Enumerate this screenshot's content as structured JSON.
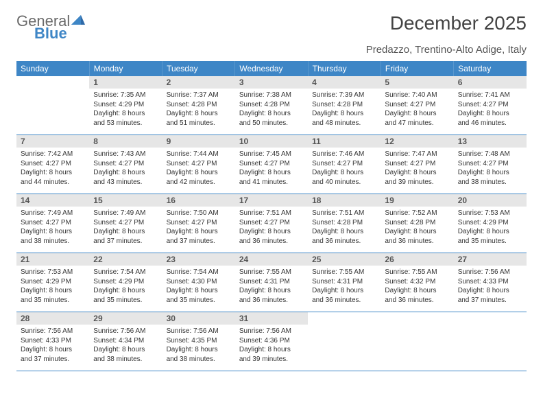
{
  "logo": {
    "text1": "General",
    "text2": "Blue"
  },
  "title": "December 2025",
  "subtitle": "Predazzo, Trentino-Alto Adige, Italy",
  "weekday_headers": [
    "Sunday",
    "Monday",
    "Tuesday",
    "Wednesday",
    "Thursday",
    "Friday",
    "Saturday"
  ],
  "colors": {
    "header_bg": "#3e86c6",
    "header_text": "#ffffff",
    "daynum_bg": "#e6e6e6",
    "daynum_text": "#555555",
    "body_text": "#333333",
    "rule": "#3e86c6",
    "logo_gray": "#6a6a6a",
    "logo_blue": "#3e86c6"
  },
  "typography": {
    "title_size_pt": 21,
    "subtitle_size_pt": 11,
    "header_size_pt": 9,
    "daynum_size_pt": 9,
    "body_size_pt": 7.5
  },
  "weeks": [
    [
      null,
      {
        "n": "1",
        "sunrise": "Sunrise: 7:35 AM",
        "sunset": "Sunset: 4:29 PM",
        "day1": "Daylight: 8 hours",
        "day2": "and 53 minutes."
      },
      {
        "n": "2",
        "sunrise": "Sunrise: 7:37 AM",
        "sunset": "Sunset: 4:28 PM",
        "day1": "Daylight: 8 hours",
        "day2": "and 51 minutes."
      },
      {
        "n": "3",
        "sunrise": "Sunrise: 7:38 AM",
        "sunset": "Sunset: 4:28 PM",
        "day1": "Daylight: 8 hours",
        "day2": "and 50 minutes."
      },
      {
        "n": "4",
        "sunrise": "Sunrise: 7:39 AM",
        "sunset": "Sunset: 4:28 PM",
        "day1": "Daylight: 8 hours",
        "day2": "and 48 minutes."
      },
      {
        "n": "5",
        "sunrise": "Sunrise: 7:40 AM",
        "sunset": "Sunset: 4:27 PM",
        "day1": "Daylight: 8 hours",
        "day2": "and 47 minutes."
      },
      {
        "n": "6",
        "sunrise": "Sunrise: 7:41 AM",
        "sunset": "Sunset: 4:27 PM",
        "day1": "Daylight: 8 hours",
        "day2": "and 46 minutes."
      }
    ],
    [
      {
        "n": "7",
        "sunrise": "Sunrise: 7:42 AM",
        "sunset": "Sunset: 4:27 PM",
        "day1": "Daylight: 8 hours",
        "day2": "and 44 minutes."
      },
      {
        "n": "8",
        "sunrise": "Sunrise: 7:43 AM",
        "sunset": "Sunset: 4:27 PM",
        "day1": "Daylight: 8 hours",
        "day2": "and 43 minutes."
      },
      {
        "n": "9",
        "sunrise": "Sunrise: 7:44 AM",
        "sunset": "Sunset: 4:27 PM",
        "day1": "Daylight: 8 hours",
        "day2": "and 42 minutes."
      },
      {
        "n": "10",
        "sunrise": "Sunrise: 7:45 AM",
        "sunset": "Sunset: 4:27 PM",
        "day1": "Daylight: 8 hours",
        "day2": "and 41 minutes."
      },
      {
        "n": "11",
        "sunrise": "Sunrise: 7:46 AM",
        "sunset": "Sunset: 4:27 PM",
        "day1": "Daylight: 8 hours",
        "day2": "and 40 minutes."
      },
      {
        "n": "12",
        "sunrise": "Sunrise: 7:47 AM",
        "sunset": "Sunset: 4:27 PM",
        "day1": "Daylight: 8 hours",
        "day2": "and 39 minutes."
      },
      {
        "n": "13",
        "sunrise": "Sunrise: 7:48 AM",
        "sunset": "Sunset: 4:27 PM",
        "day1": "Daylight: 8 hours",
        "day2": "and 38 minutes."
      }
    ],
    [
      {
        "n": "14",
        "sunrise": "Sunrise: 7:49 AM",
        "sunset": "Sunset: 4:27 PM",
        "day1": "Daylight: 8 hours",
        "day2": "and 38 minutes."
      },
      {
        "n": "15",
        "sunrise": "Sunrise: 7:49 AM",
        "sunset": "Sunset: 4:27 PM",
        "day1": "Daylight: 8 hours",
        "day2": "and 37 minutes."
      },
      {
        "n": "16",
        "sunrise": "Sunrise: 7:50 AM",
        "sunset": "Sunset: 4:27 PM",
        "day1": "Daylight: 8 hours",
        "day2": "and 37 minutes."
      },
      {
        "n": "17",
        "sunrise": "Sunrise: 7:51 AM",
        "sunset": "Sunset: 4:27 PM",
        "day1": "Daylight: 8 hours",
        "day2": "and 36 minutes."
      },
      {
        "n": "18",
        "sunrise": "Sunrise: 7:51 AM",
        "sunset": "Sunset: 4:28 PM",
        "day1": "Daylight: 8 hours",
        "day2": "and 36 minutes."
      },
      {
        "n": "19",
        "sunrise": "Sunrise: 7:52 AM",
        "sunset": "Sunset: 4:28 PM",
        "day1": "Daylight: 8 hours",
        "day2": "and 36 minutes."
      },
      {
        "n": "20",
        "sunrise": "Sunrise: 7:53 AM",
        "sunset": "Sunset: 4:29 PM",
        "day1": "Daylight: 8 hours",
        "day2": "and 35 minutes."
      }
    ],
    [
      {
        "n": "21",
        "sunrise": "Sunrise: 7:53 AM",
        "sunset": "Sunset: 4:29 PM",
        "day1": "Daylight: 8 hours",
        "day2": "and 35 minutes."
      },
      {
        "n": "22",
        "sunrise": "Sunrise: 7:54 AM",
        "sunset": "Sunset: 4:29 PM",
        "day1": "Daylight: 8 hours",
        "day2": "and 35 minutes."
      },
      {
        "n": "23",
        "sunrise": "Sunrise: 7:54 AM",
        "sunset": "Sunset: 4:30 PM",
        "day1": "Daylight: 8 hours",
        "day2": "and 35 minutes."
      },
      {
        "n": "24",
        "sunrise": "Sunrise: 7:55 AM",
        "sunset": "Sunset: 4:31 PM",
        "day1": "Daylight: 8 hours",
        "day2": "and 36 minutes."
      },
      {
        "n": "25",
        "sunrise": "Sunrise: 7:55 AM",
        "sunset": "Sunset: 4:31 PM",
        "day1": "Daylight: 8 hours",
        "day2": "and 36 minutes."
      },
      {
        "n": "26",
        "sunrise": "Sunrise: 7:55 AM",
        "sunset": "Sunset: 4:32 PM",
        "day1": "Daylight: 8 hours",
        "day2": "and 36 minutes."
      },
      {
        "n": "27",
        "sunrise": "Sunrise: 7:56 AM",
        "sunset": "Sunset: 4:33 PM",
        "day1": "Daylight: 8 hours",
        "day2": "and 37 minutes."
      }
    ],
    [
      {
        "n": "28",
        "sunrise": "Sunrise: 7:56 AM",
        "sunset": "Sunset: 4:33 PM",
        "day1": "Daylight: 8 hours",
        "day2": "and 37 minutes."
      },
      {
        "n": "29",
        "sunrise": "Sunrise: 7:56 AM",
        "sunset": "Sunset: 4:34 PM",
        "day1": "Daylight: 8 hours",
        "day2": "and 38 minutes."
      },
      {
        "n": "30",
        "sunrise": "Sunrise: 7:56 AM",
        "sunset": "Sunset: 4:35 PM",
        "day1": "Daylight: 8 hours",
        "day2": "and 38 minutes."
      },
      {
        "n": "31",
        "sunrise": "Sunrise: 7:56 AM",
        "sunset": "Sunset: 4:36 PM",
        "day1": "Daylight: 8 hours",
        "day2": "and 39 minutes."
      },
      null,
      null,
      null
    ]
  ]
}
